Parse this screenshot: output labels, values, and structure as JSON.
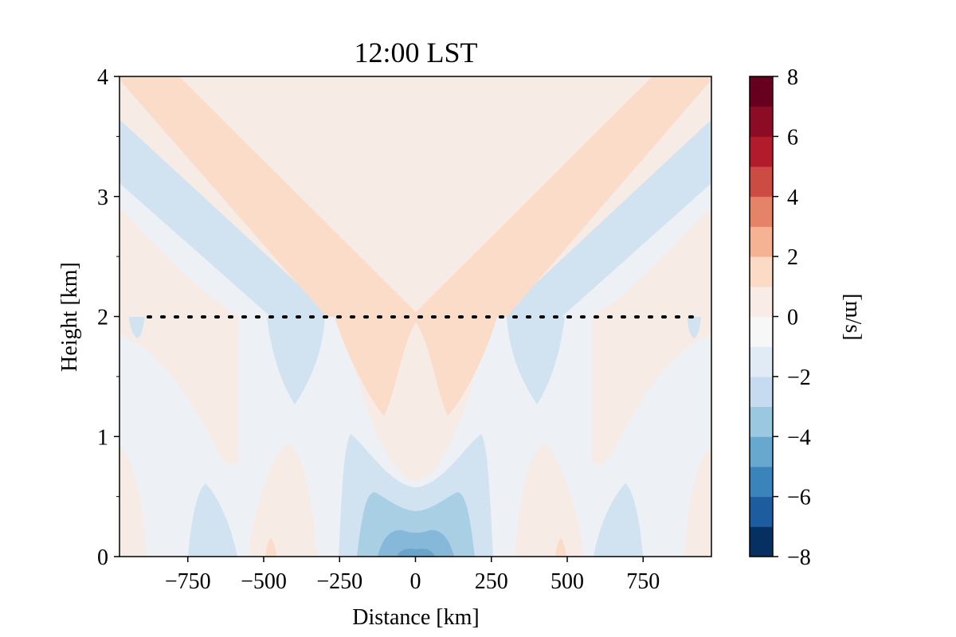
{
  "chart_data": {
    "type": "heatmap",
    "subtype": "filled-contour",
    "title": "12:00 LST",
    "xlabel": "Distance [km]",
    "ylabel": "Height [km]",
    "xlim": [
      -975,
      975
    ],
    "ylim": [
      0,
      4
    ],
    "x_ticks": [
      -750,
      -500,
      -250,
      0,
      250,
      500,
      750
    ],
    "x_tick_labels": [
      "−750",
      "−500",
      "−250",
      "0",
      "250",
      "500",
      "750"
    ],
    "y_ticks": [
      0,
      1,
      2,
      3,
      4
    ],
    "y_tick_labels": [
      "0",
      "1",
      "2",
      "3",
      "4"
    ],
    "reference_line": {
      "y": 2,
      "style": "dotted",
      "color": "#000000"
    },
    "colorbar": {
      "label": "[m/s]",
      "levels": [
        -8,
        -7,
        -6,
        -5,
        -4,
        -3,
        -2,
        -1,
        0,
        1,
        2,
        3,
        4,
        5,
        6,
        7,
        8
      ],
      "ticks": [
        -8,
        -6,
        -4,
        -2,
        0,
        2,
        4,
        6,
        8
      ],
      "tick_labels": [
        "−8",
        "−6",
        "−4",
        "−2",
        "0",
        "2",
        "4",
        "6",
        "8"
      ],
      "colors": [
        "#053061",
        "#1c5c9f",
        "#3a84bb",
        "#68a8cf",
        "#9ac8e0",
        "#c6dbef",
        "#e0ebf5",
        "#f7f7f7",
        "#f9ebe5",
        "#fbdac6",
        "#f5b394",
        "#e58368",
        "#cc4c44",
        "#b11b2c",
        "#8c0c25",
        "#67001f"
      ],
      "colormap": "RdBu_r"
    },
    "contour_levels_present": [
      -3,
      -2,
      -1,
      0,
      1
    ],
    "field_description_values": {
      "surface_center_min": -3,
      "upper_v_band": 1,
      "outer_bands": -1
    }
  },
  "colors": {
    "bg": "#ffffff",
    "lvl_m3": "#86b9d9",
    "lvl_m2": "#a9cfe5",
    "lvl_m1": "#d1e3f0",
    "lvl_0n": "#edf1f5",
    "lvl_0p": "#f7ebe6",
    "lvl_p1": "#fadcc9",
    "lvl_p1b": "#f8d4c0"
  }
}
